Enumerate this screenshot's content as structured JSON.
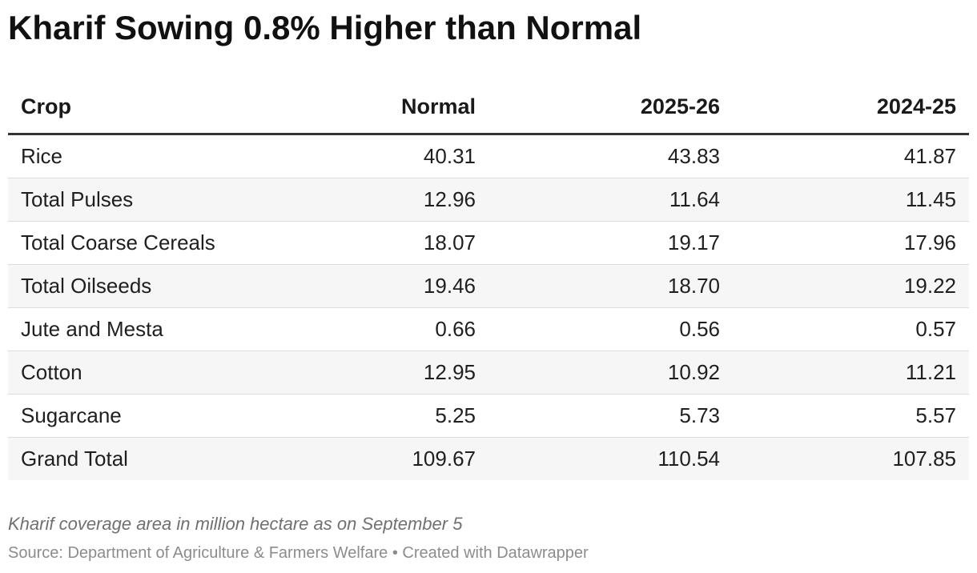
{
  "chart_data": {
    "type": "table",
    "title": "Kharif Sowing 0.8% Higher than Normal",
    "columns": [
      "Crop",
      "Normal",
      "2025-26",
      "2024-25"
    ],
    "rows": [
      [
        "Rice",
        "40.31",
        "43.83",
        "41.87"
      ],
      [
        "Total Pulses",
        "12.96",
        "11.64",
        "11.45"
      ],
      [
        "Total Coarse Cereals",
        "18.07",
        "19.17",
        "17.96"
      ],
      [
        "Total Oilseeds",
        "19.46",
        "18.70",
        "19.22"
      ],
      [
        "Jute and Mesta",
        "0.66",
        "0.56",
        "0.57"
      ],
      [
        "Cotton",
        "12.95",
        "10.92",
        "11.21"
      ],
      [
        "Sugarcane",
        "5.25",
        "5.73",
        "5.57"
      ],
      [
        "Grand Total",
        "109.67",
        "110.54",
        "107.85"
      ]
    ],
    "notes": "Kharif coverage area in million hectare as on September 5",
    "source": "Source: Department of Agriculture & Farmers Welfare • Created with Datawrapper"
  },
  "colors": {
    "header_rule": "#333333",
    "row_stripe": "#f6f6f6",
    "row_divider": "#dddddd",
    "note_text": "#707070",
    "source_text": "#8c8c8c"
  }
}
